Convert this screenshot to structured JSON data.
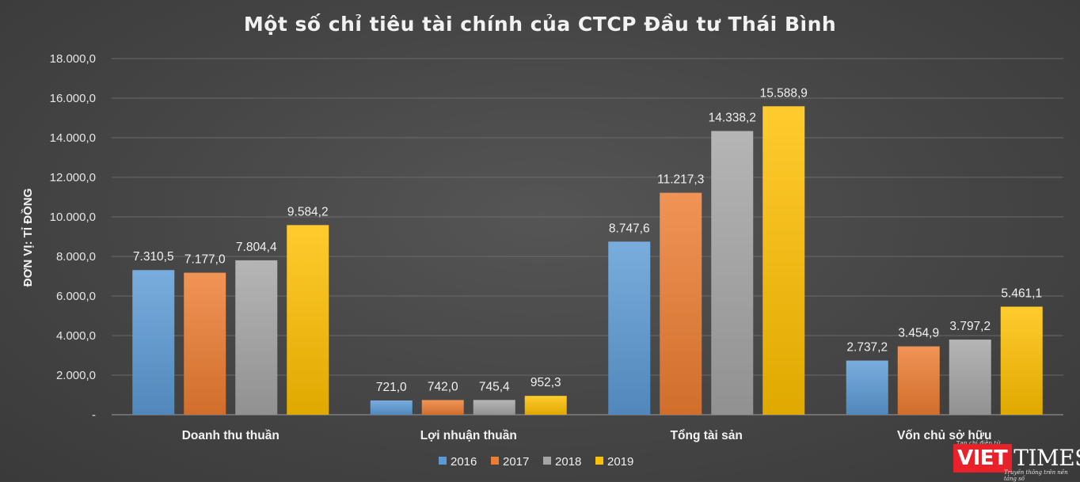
{
  "chart_data": {
    "type": "bar",
    "title": "Một số chỉ tiêu tài chính của CTCP Đầu tư Thái Bình",
    "ylabel": "ĐƠN VỊ: TỈ ĐỒNG",
    "xlabel": "",
    "ylim": [
      0,
      18000
    ],
    "yticks": [
      0,
      2000,
      4000,
      6000,
      8000,
      10000,
      12000,
      14000,
      16000,
      18000
    ],
    "ytick_labels": [
      "-",
      "2.000,0",
      "4.000,0",
      "6.000,0",
      "8.000,0",
      "10.000,0",
      "12.000,0",
      "14.000,0",
      "16.000,0",
      "18.000,0"
    ],
    "categories": [
      "Doanh thu thuần",
      "Lợi nhuận thuần",
      "Tổng tài sản",
      "Vốn chủ sở hữu"
    ],
    "series": [
      {
        "name": "2016",
        "color": "#5b9bd5",
        "values": [
          7310.5,
          721.0,
          8747.6,
          2737.2
        ],
        "labels": [
          "7.310,5",
          "721,0",
          "8.747,6",
          "2.737,2"
        ]
      },
      {
        "name": "2017",
        "color": "#ed7d31",
        "values": [
          7177.0,
          742.0,
          11217.3,
          3454.9
        ],
        "labels": [
          "7.177,0",
          "742,0",
          "11.217,3",
          "3.454,9"
        ]
      },
      {
        "name": "2018",
        "color": "#a5a5a5",
        "values": [
          7804.4,
          745.4,
          14338.2,
          3797.2
        ],
        "labels": [
          "7.804,4",
          "745,4",
          "14.338,2",
          "3.797,2"
        ]
      },
      {
        "name": "2019",
        "color": "#ffc000",
        "values": [
          9584.2,
          952.3,
          15588.9,
          5461.1
        ],
        "labels": [
          "9.584,2",
          "952,3",
          "15.588,9",
          "5.461,1"
        ]
      }
    ],
    "grid": true,
    "legend": "bottom-center"
  },
  "watermark": {
    "small_text": "Tạp chí điện tử",
    "brand_left": "VIET",
    "brand_right": "TIMES",
    "tagline": "Truyền thông trên nền tảng số"
  }
}
